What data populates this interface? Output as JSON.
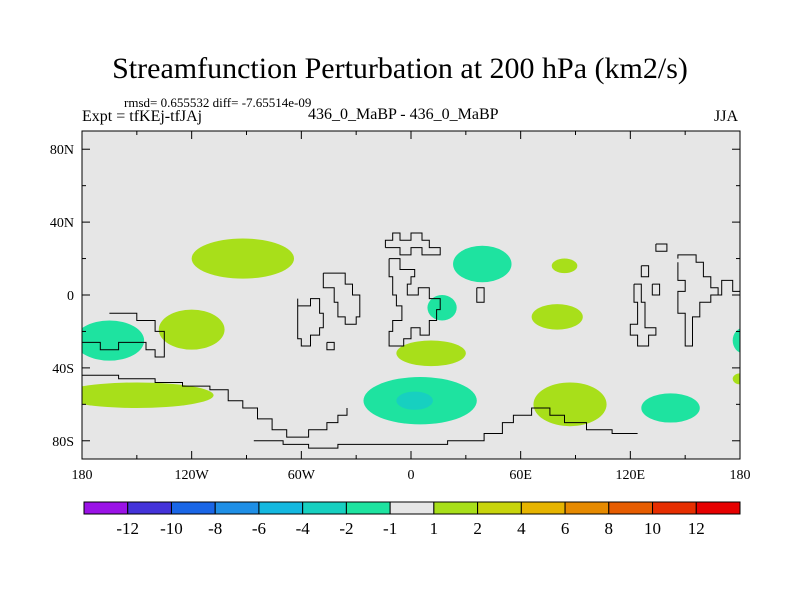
{
  "title": "Streamfunction Perturbation at 200 hPa (km2/s)",
  "subtitle_stats": "rmsd= 0.655532 diff= -7.65514e-09",
  "subtitle_left": "Expt = tfKEj-tfJAj",
  "subtitle_center": "436_0_MaBP - 436_0_MaBP",
  "subtitle_right": "JJA",
  "chart_data": {
    "type": "heatmap",
    "projection": "cylindrical-equidistant",
    "xlim": [
      -180,
      180
    ],
    "ylim": [
      -90,
      90
    ],
    "x_ticks": [
      {
        "value": -180,
        "label": "180"
      },
      {
        "value": -120,
        "label": "120W"
      },
      {
        "value": -60,
        "label": "60W"
      },
      {
        "value": 0,
        "label": "0"
      },
      {
        "value": 60,
        "label": "60E"
      },
      {
        "value": 120,
        "label": "120E"
      },
      {
        "value": 180,
        "label": "180"
      }
    ],
    "y_ticks": [
      {
        "value": 80,
        "label": "80N"
      },
      {
        "value": 40,
        "label": "40N"
      },
      {
        "value": 0,
        "label": "0"
      },
      {
        "value": -40,
        "label": "40S"
      },
      {
        "value": -80,
        "label": "80S"
      }
    ],
    "background_color": "#e6e6e6",
    "colorbar": {
      "labels": [
        "-12",
        "-10",
        "-8",
        "-6",
        "-4",
        "-2",
        "-1",
        "1",
        "2",
        "4",
        "6",
        "8",
        "10",
        "12"
      ],
      "colors": [
        "#9a12e6",
        "#4433d9",
        "#1a66e6",
        "#1f8fe6",
        "#14b8e0",
        "#17d0c0",
        "#1ee3a0",
        "#e6e6e6",
        "#a8df1a",
        "#c8d40c",
        "#e6b400",
        "#e68a00",
        "#e65c00",
        "#e62e00",
        "#e60000"
      ]
    },
    "regions": [
      {
        "level": "-2..-1",
        "color": "#1ee3a0",
        "cx": -165,
        "cy": -25,
        "rx": 19,
        "ry": 11
      },
      {
        "level": "-2..-1",
        "color": "#1ee3a0",
        "cx": 5,
        "cy": -58,
        "rx": 31,
        "ry": 13
      },
      {
        "level": "-4..-2",
        "color": "#17d0c0",
        "cx": 2,
        "cy": -58,
        "rx": 10,
        "ry": 5
      },
      {
        "level": "-2..-1",
        "color": "#1ee3a0",
        "cx": 39,
        "cy": 17,
        "rx": 16,
        "ry": 10
      },
      {
        "level": "-2..-1",
        "color": "#1ee3a0",
        "cx": 17,
        "cy": -7,
        "rx": 8,
        "ry": 7
      },
      {
        "level": "-2..-1",
        "color": "#1ee3a0",
        "cx": 142,
        "cy": -62,
        "rx": 16,
        "ry": 8
      },
      {
        "level": "-2..-1",
        "color": "#1ee3a0",
        "cx": 182,
        "cy": -25,
        "rx": 6,
        "ry": 7
      },
      {
        "level": "1..2",
        "color": "#a8df1a",
        "cx": -120,
        "cy": -19,
        "rx": 18,
        "ry": 11
      },
      {
        "level": "1..2",
        "color": "#a8df1a",
        "cx": -92,
        "cy": 20,
        "rx": 28,
        "ry": 11
      },
      {
        "level": "1..2",
        "color": "#a8df1a",
        "cx": 11,
        "cy": -32,
        "rx": 19,
        "ry": 7
      },
      {
        "level": "1..2",
        "color": "#a8df1a",
        "cx": 80,
        "cy": -12,
        "rx": 14,
        "ry": 7
      },
      {
        "level": "1..2",
        "color": "#a8df1a",
        "cx": 87,
        "cy": -60,
        "rx": 20,
        "ry": 12
      },
      {
        "level": "1..2",
        "color": "#a8df1a",
        "cx": 84,
        "cy": 16,
        "rx": 7,
        "ry": 4
      },
      {
        "level": "1..2",
        "color": "#a8df1a",
        "cx": 180,
        "cy": -46,
        "rx": 4,
        "ry": 3
      },
      {
        "level": "1..2",
        "color": "#a8df1a",
        "cx": -150,
        "cy": -55,
        "rx": 42,
        "ry": 7
      }
    ],
    "coastlines": [
      [
        [
          -165,
          -10
        ],
        [
          -150,
          -10
        ],
        [
          -150,
          -14
        ],
        [
          -140,
          -14
        ],
        [
          -140,
          -20
        ],
        [
          -135,
          -20
        ],
        [
          -135,
          -34
        ],
        [
          -140,
          -34
        ],
        [
          -140,
          -30
        ],
        [
          -145,
          -30
        ],
        [
          -145,
          -26
        ],
        [
          -160,
          -26
        ],
        [
          -160,
          -30
        ],
        [
          -170,
          -30
        ],
        [
          -170,
          -26
        ],
        [
          -180,
          -26
        ]
      ],
      [
        [
          -180,
          -44
        ],
        [
          -160,
          -44
        ],
        [
          -160,
          -46
        ],
        [
          -140,
          -46
        ],
        [
          -140,
          -48
        ],
        [
          -125,
          -48
        ],
        [
          -125,
          -50
        ],
        [
          -110,
          -50
        ],
        [
          -110,
          -52
        ],
        [
          -100,
          -52
        ],
        [
          -100,
          -58
        ],
        [
          -92,
          -58
        ],
        [
          -92,
          -62
        ],
        [
          -84,
          -62
        ],
        [
          -84,
          -68
        ],
        [
          -76,
          -68
        ],
        [
          -76,
          -74
        ],
        [
          -68,
          -74
        ],
        [
          -68,
          -78
        ],
        [
          -56,
          -78
        ],
        [
          -56,
          -74
        ],
        [
          -46,
          -74
        ],
        [
          -46,
          -70
        ],
        [
          -40,
          -70
        ],
        [
          -40,
          -66
        ],
        [
          -35,
          -66
        ],
        [
          -35,
          -62
        ]
      ],
      [
        [
          -62,
          -2
        ],
        [
          -62,
          -6
        ],
        [
          -55,
          -6
        ],
        [
          -55,
          -2
        ],
        [
          -50,
          -2
        ],
        [
          -50,
          -10
        ],
        [
          -48,
          -10
        ],
        [
          -48,
          -18
        ],
        [
          -50,
          -18
        ],
        [
          -50,
          -22
        ],
        [
          -55,
          -22
        ],
        [
          -55,
          -28
        ],
        [
          -60,
          -28
        ],
        [
          -60,
          -24
        ],
        [
          -62,
          -24
        ],
        [
          -62,
          -2
        ]
      ],
      [
        [
          -48,
          12
        ],
        [
          -48,
          4
        ],
        [
          -42,
          4
        ],
        [
          -42,
          -4
        ],
        [
          -40,
          -4
        ],
        [
          -40,
          -12
        ],
        [
          -36,
          -12
        ],
        [
          -36,
          -16
        ],
        [
          -30,
          -16
        ],
        [
          -30,
          -12
        ],
        [
          -28,
          -12
        ],
        [
          -28,
          0
        ],
        [
          -32,
          0
        ],
        [
          -32,
          6
        ],
        [
          -36,
          6
        ],
        [
          -36,
          12
        ],
        [
          -48,
          12
        ]
      ],
      [
        [
          -46,
          -26
        ],
        [
          -42,
          -26
        ],
        [
          -42,
          -30
        ],
        [
          -46,
          -30
        ],
        [
          -46,
          -26
        ]
      ],
      [
        [
          -12,
          20
        ],
        [
          -12,
          10
        ],
        [
          -10,
          10
        ],
        [
          -10,
          0
        ],
        [
          -8,
          0
        ],
        [
          -8,
          -6
        ],
        [
          -5,
          -6
        ],
        [
          -5,
          -14
        ],
        [
          -10,
          -14
        ],
        [
          -10,
          -20
        ],
        [
          -12,
          -20
        ],
        [
          -12,
          -28
        ],
        [
          -4,
          -28
        ],
        [
          -4,
          -24
        ],
        [
          0,
          -24
        ],
        [
          0,
          -18
        ],
        [
          5,
          -18
        ],
        [
          5,
          -22
        ],
        [
          10,
          -22
        ],
        [
          10,
          -14
        ],
        [
          14,
          -14
        ],
        [
          14,
          -8
        ],
        [
          16,
          -8
        ],
        [
          16,
          -2
        ],
        [
          10,
          -2
        ],
        [
          10,
          4
        ],
        [
          4,
          4
        ],
        [
          4,
          0
        ],
        [
          -2,
          0
        ],
        [
          -2,
          6
        ],
        [
          0,
          6
        ],
        [
          0,
          10
        ],
        [
          2,
          10
        ],
        [
          2,
          14
        ],
        [
          -6,
          14
        ],
        [
          -6,
          20
        ],
        [
          -12,
          20
        ]
      ],
      [
        [
          -14,
          26
        ],
        [
          -14,
          30
        ],
        [
          -10,
          30
        ],
        [
          -10,
          34
        ],
        [
          -6,
          34
        ],
        [
          -6,
          30
        ],
        [
          0,
          30
        ],
        [
          0,
          34
        ],
        [
          6,
          34
        ],
        [
          6,
          30
        ],
        [
          10,
          30
        ],
        [
          10,
          26
        ],
        [
          16,
          26
        ],
        [
          16,
          22
        ],
        [
          6,
          22
        ],
        [
          6,
          26
        ],
        [
          0,
          26
        ],
        [
          0,
          22
        ],
        [
          -6,
          22
        ],
        [
          -6,
          26
        ],
        [
          -14,
          26
        ]
      ],
      [
        [
          36,
          4
        ],
        [
          36,
          -4
        ],
        [
          40,
          -4
        ],
        [
          40,
          4
        ],
        [
          36,
          4
        ]
      ],
      [
        [
          134,
          28
        ],
        [
          134,
          24
        ],
        [
          140,
          24
        ],
        [
          140,
          28
        ],
        [
          134,
          28
        ]
      ],
      [
        [
          126,
          16
        ],
        [
          126,
          10
        ],
        [
          130,
          10
        ],
        [
          130,
          16
        ],
        [
          126,
          16
        ]
      ],
      [
        [
          132,
          6
        ],
        [
          132,
          0
        ],
        [
          136,
          0
        ],
        [
          136,
          6
        ],
        [
          132,
          6
        ]
      ],
      [
        [
          122,
          6
        ],
        [
          122,
          -4
        ],
        [
          124,
          -4
        ],
        [
          124,
          -16
        ],
        [
          120,
          -16
        ],
        [
          120,
          -22
        ],
        [
          124,
          -22
        ],
        [
          124,
          -28
        ],
        [
          130,
          -28
        ],
        [
          130,
          -22
        ],
        [
          134,
          -22
        ],
        [
          134,
          -18
        ],
        [
          128,
          -18
        ],
        [
          128,
          -4
        ],
        [
          126,
          -4
        ],
        [
          126,
          6
        ],
        [
          122,
          6
        ]
      ],
      [
        [
          146,
          18
        ],
        [
          146,
          8
        ],
        [
          150,
          8
        ],
        [
          150,
          2
        ],
        [
          146,
          2
        ],
        [
          146,
          -10
        ],
        [
          150,
          -10
        ],
        [
          150,
          -28
        ],
        [
          154,
          -28
        ],
        [
          154,
          -12
        ],
        [
          158,
          -12
        ],
        [
          158,
          -4
        ],
        [
          164,
          -4
        ],
        [
          164,
          0
        ],
        [
          170,
          0
        ],
        [
          170,
          8
        ],
        [
          176,
          8
        ],
        [
          176,
          2
        ],
        [
          180,
          2
        ]
      ],
      [
        [
          146,
          20
        ],
        [
          146,
          22
        ],
        [
          156,
          22
        ],
        [
          156,
          18
        ],
        [
          160,
          18
        ],
        [
          160,
          10
        ],
        [
          164,
          10
        ],
        [
          164,
          4
        ],
        [
          168,
          4
        ],
        [
          168,
          0
        ]
      ],
      [
        [
          -86,
          -80
        ],
        [
          -70,
          -80
        ],
        [
          -70,
          -82
        ],
        [
          -56,
          -82
        ],
        [
          -56,
          -84
        ],
        [
          -40,
          -84
        ],
        [
          -40,
          -82
        ],
        [
          20,
          -82
        ],
        [
          20,
          -80
        ],
        [
          40,
          -80
        ],
        [
          40,
          -76
        ],
        [
          50,
          -76
        ],
        [
          50,
          -70
        ],
        [
          56,
          -70
        ],
        [
          56,
          -66
        ],
        [
          66,
          -66
        ],
        [
          66,
          -62
        ],
        [
          76,
          -62
        ],
        [
          76,
          -66
        ],
        [
          84,
          -66
        ],
        [
          84,
          -70
        ],
        [
          96,
          -70
        ],
        [
          96,
          -74
        ],
        [
          110,
          -74
        ],
        [
          110,
          -76
        ],
        [
          124,
          -76
        ]
      ]
    ]
  }
}
